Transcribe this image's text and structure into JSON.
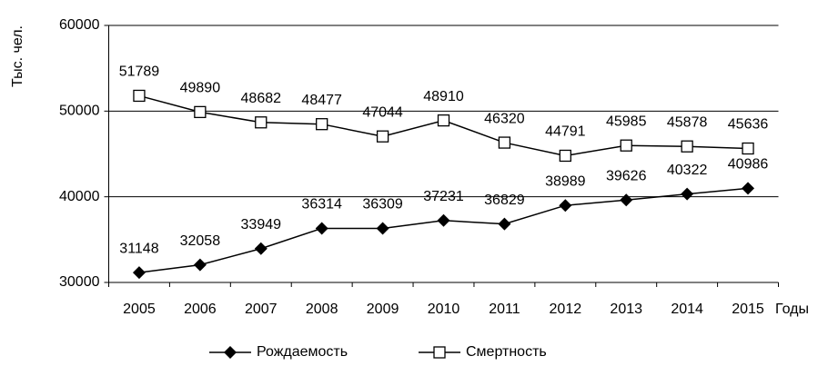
{
  "chart_data": {
    "type": "line",
    "y_label": "Тыс. чел.",
    "x_label": "Годы",
    "categories": [
      "2005",
      "2006",
      "2007",
      "2008",
      "2009",
      "2010",
      "2011",
      "2012",
      "2013",
      "2014",
      "2015"
    ],
    "series": [
      {
        "name": "Рождаемость",
        "color": "#000000",
        "marker": "diamond",
        "values": [
          31148,
          32058,
          33949,
          36314,
          36309,
          37231,
          36829,
          38989,
          39626,
          40322,
          40986
        ]
      },
      {
        "name": "Смертность",
        "color": "#000000",
        "marker": "square",
        "values": [
          51789,
          49890,
          48682,
          48477,
          47044,
          48910,
          46320,
          44791,
          45985,
          45878,
          45636
        ]
      }
    ],
    "ylim": [
      30000,
      60000
    ],
    "yticks": [
      30000,
      40000,
      50000,
      60000
    ],
    "grid": true,
    "legend": "bottom"
  }
}
